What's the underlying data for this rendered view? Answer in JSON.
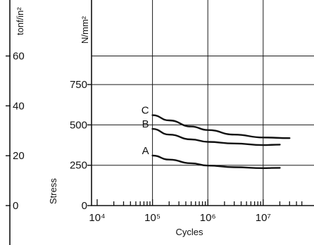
{
  "chart_data": {
    "type": "line",
    "x_scale": "log",
    "xlabel": "Cycles",
    "ylabel": "Stress",
    "xlim": [
      10000,
      60000000
    ],
    "ylim": [
      0,
      1000
    ],
    "left_axis": {
      "unit": "tonf/in²",
      "ticks": [
        {
          "label": "60",
          "value": 927
        },
        {
          "label": "40",
          "value": 618
        },
        {
          "label": "20",
          "value": 309
        },
        {
          "label": "0",
          "value": 0
        }
      ]
    },
    "right_axis": {
      "unit": "N/mm²",
      "ticks": [
        {
          "label": "750",
          "value": 750
        },
        {
          "label": "500",
          "value": 500
        },
        {
          "label": "250",
          "value": 250
        },
        {
          "label": "0",
          "value": 0
        }
      ]
    },
    "x_ticks": [
      {
        "label": "10⁴",
        "value": 10000
      },
      {
        "label": "10⁵",
        "value": 100000
      },
      {
        "label": "10⁶",
        "value": 1000000
      },
      {
        "label": "10⁷",
        "value": 10000000
      }
    ],
    "grid": true,
    "series": [
      {
        "name": "A",
        "points": [
          [
            100000,
            310
          ],
          [
            200000,
            285
          ],
          [
            500000,
            262
          ],
          [
            1000000,
            248
          ],
          [
            3000000,
            238
          ],
          [
            10000000,
            232
          ],
          [
            20000000,
            234
          ]
        ]
      },
      {
        "name": "B",
        "points": [
          [
            100000,
            475
          ],
          [
            200000,
            440
          ],
          [
            500000,
            410
          ],
          [
            1000000,
            395
          ],
          [
            3000000,
            385
          ],
          [
            10000000,
            375
          ],
          [
            20000000,
            378
          ]
        ]
      },
      {
        "name": "C",
        "points": [
          [
            100000,
            560
          ],
          [
            200000,
            528
          ],
          [
            500000,
            490
          ],
          [
            1000000,
            468
          ],
          [
            3000000,
            440
          ],
          [
            10000000,
            422
          ],
          [
            30000000,
            418
          ]
        ]
      }
    ]
  }
}
